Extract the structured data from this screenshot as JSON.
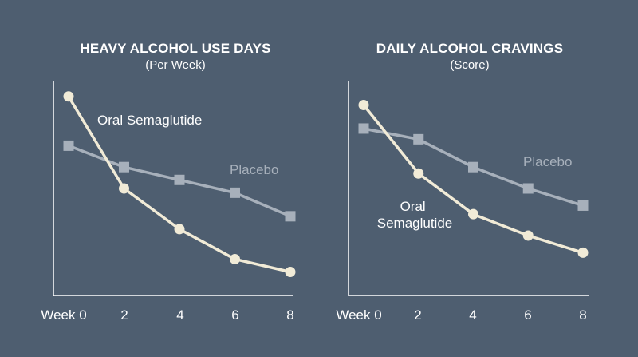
{
  "colors": {
    "background": "#4e5e70",
    "semaglutide": "#f1ebd7",
    "placebo": "#a7b0bb",
    "text": "#ffffff"
  },
  "chart_data": [
    {
      "type": "line",
      "title": "HEAVY ALCOHOL USE DAYS",
      "subtitle": "(Per Week)",
      "x": [
        0,
        2,
        4,
        6,
        8
      ],
      "tick_labels": [
        "Week 0",
        "2",
        "4",
        "6",
        "8"
      ],
      "ylim": [
        0,
        1
      ],
      "series": [
        {
          "name": "Oral Semaglutide",
          "label_lines": [
            "Oral Semaglutide"
          ],
          "marker": "circle",
          "values": [
            0.93,
            0.5,
            0.31,
            0.17,
            0.11
          ]
        },
        {
          "name": "Placebo",
          "label_lines": [
            "Placebo"
          ],
          "marker": "square",
          "values": [
            0.7,
            0.6,
            0.54,
            0.48,
            0.37
          ]
        }
      ]
    },
    {
      "type": "line",
      "title": "DAILY ALCOHOL CRAVINGS",
      "subtitle": "(Score)",
      "x": [
        0,
        2,
        4,
        6,
        8
      ],
      "tick_labels": [
        "Week 0",
        "2",
        "4",
        "6",
        "8"
      ],
      "ylim": [
        0,
        1
      ],
      "series": [
        {
          "name": "Oral Semaglutide",
          "label_lines": [
            "Oral",
            "Semaglutide"
          ],
          "marker": "circle",
          "values": [
            0.89,
            0.57,
            0.38,
            0.28,
            0.2
          ]
        },
        {
          "name": "Placebo",
          "label_lines": [
            "Placebo"
          ],
          "marker": "square",
          "values": [
            0.78,
            0.73,
            0.6,
            0.5,
            0.42
          ]
        }
      ]
    }
  ]
}
